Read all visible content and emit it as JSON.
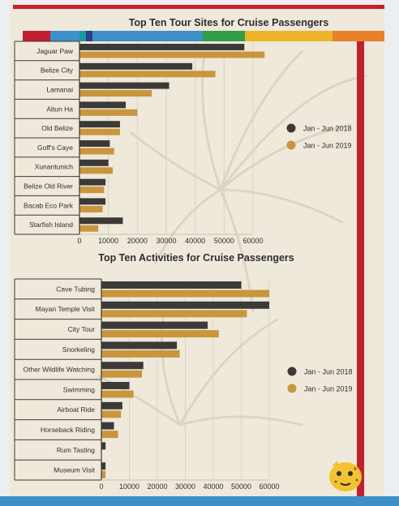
{
  "colors": {
    "series_2018": "#3b3a36",
    "series_2019": "#c9963e",
    "accent_red": "#c41f2f",
    "accent_blue": "#3f8fc8",
    "band": [
      "#c41f2f",
      "#3f8fc8",
      "#1a9a9c",
      "#2c3e8c",
      "#3f8fc8",
      "#2e9e47",
      "#f0b429",
      "#e8822a"
    ]
  },
  "chart_data": [
    {
      "type": "bar",
      "orientation": "horizontal",
      "title": "Top Ten Tour Sites for Cruise Passengers",
      "categories": [
        "Jaguar Paw",
        "Belize City",
        "Lamanai",
        "Altun Ha",
        "Old Belize",
        "Goff's Caye",
        "Xunantunich",
        "Belize Old River",
        "Bacab Eco Park",
        "Starfish Island"
      ],
      "series": [
        {
          "name": "Jan - Jun 2018",
          "values": [
            57000,
            39000,
            31000,
            16000,
            14000,
            10500,
            10000,
            9000,
            9000,
            15000
          ]
        },
        {
          "name": "Jan - Jun 2019",
          "values": [
            64000,
            47000,
            25000,
            20000,
            14000,
            12000,
            11500,
            8500,
            8000,
            6500
          ]
        }
      ],
      "xlim": [
        0,
        70000
      ],
      "xticks": [
        "0",
        "10000",
        "20000",
        "30000",
        "40000",
        "50000",
        "60000"
      ],
      "grid": true,
      "legend": "right"
    },
    {
      "type": "bar",
      "orientation": "horizontal",
      "title": "Top Ten Activities for Cruise Passengers",
      "categories": [
        "Cave Tubing",
        "Mayan Temple Visit",
        "City Tour",
        "Snorkeling",
        "Other Wildlife Watching",
        "Swimming",
        "Airboat Ride",
        "Horseback Riding",
        "Rum Tasting",
        "Museum Visit"
      ],
      "series": [
        {
          "name": "Jan - Jun 2018",
          "values": [
            50000,
            60000,
            38000,
            27000,
            15000,
            10000,
            7500,
            4500,
            1500,
            1500
          ]
        },
        {
          "name": "Jan - Jun 2019",
          "values": [
            60000,
            52000,
            42000,
            28000,
            14500,
            11500,
            7000,
            6000,
            0,
            1500
          ]
        }
      ],
      "xlim": [
        0,
        70000
      ],
      "xticks": [
        "0",
        "10000",
        "20000",
        "30000",
        "40000",
        "50000",
        "60000"
      ],
      "grid": true,
      "legend": "right"
    }
  ]
}
